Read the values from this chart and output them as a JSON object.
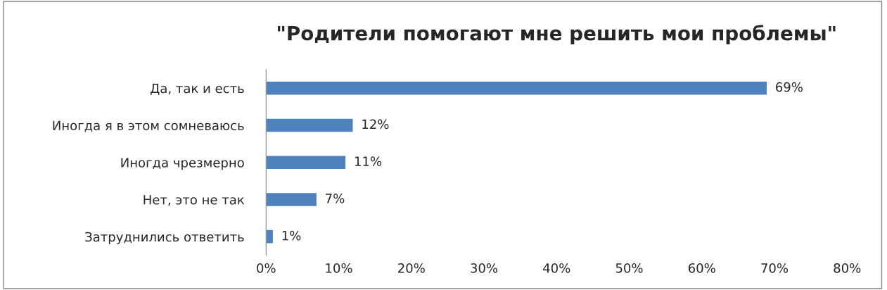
{
  "chart_data": {
    "type": "bar",
    "orientation": "horizontal",
    "title": "\"Родители помогают мне решить мои проблемы\"",
    "categories": [
      "Да, так и есть",
      "Иногда я в этом сомневаюсь",
      "Иногда чрезмерно",
      "Нет, это не так",
      "Затруднились ответить"
    ],
    "values": [
      69,
      12,
      11,
      7,
      1
    ],
    "value_labels": [
      "69%",
      "12%",
      "11%",
      "7%",
      "1%"
    ],
    "color": "#4f81bd",
    "xlim": [
      0,
      80
    ],
    "xticks": [
      {
        "value": 0,
        "label": "0%"
      },
      {
        "value": 10,
        "label": "10%"
      },
      {
        "value": 20,
        "label": "20%"
      },
      {
        "value": 30,
        "label": "30%"
      },
      {
        "value": 40,
        "label": "40%"
      },
      {
        "value": 50,
        "label": "50%"
      },
      {
        "value": 60,
        "label": "60%"
      },
      {
        "value": 70,
        "label": "70%"
      },
      {
        "value": 80,
        "label": "80%"
      }
    ],
    "grid": false,
    "legend": false
  }
}
